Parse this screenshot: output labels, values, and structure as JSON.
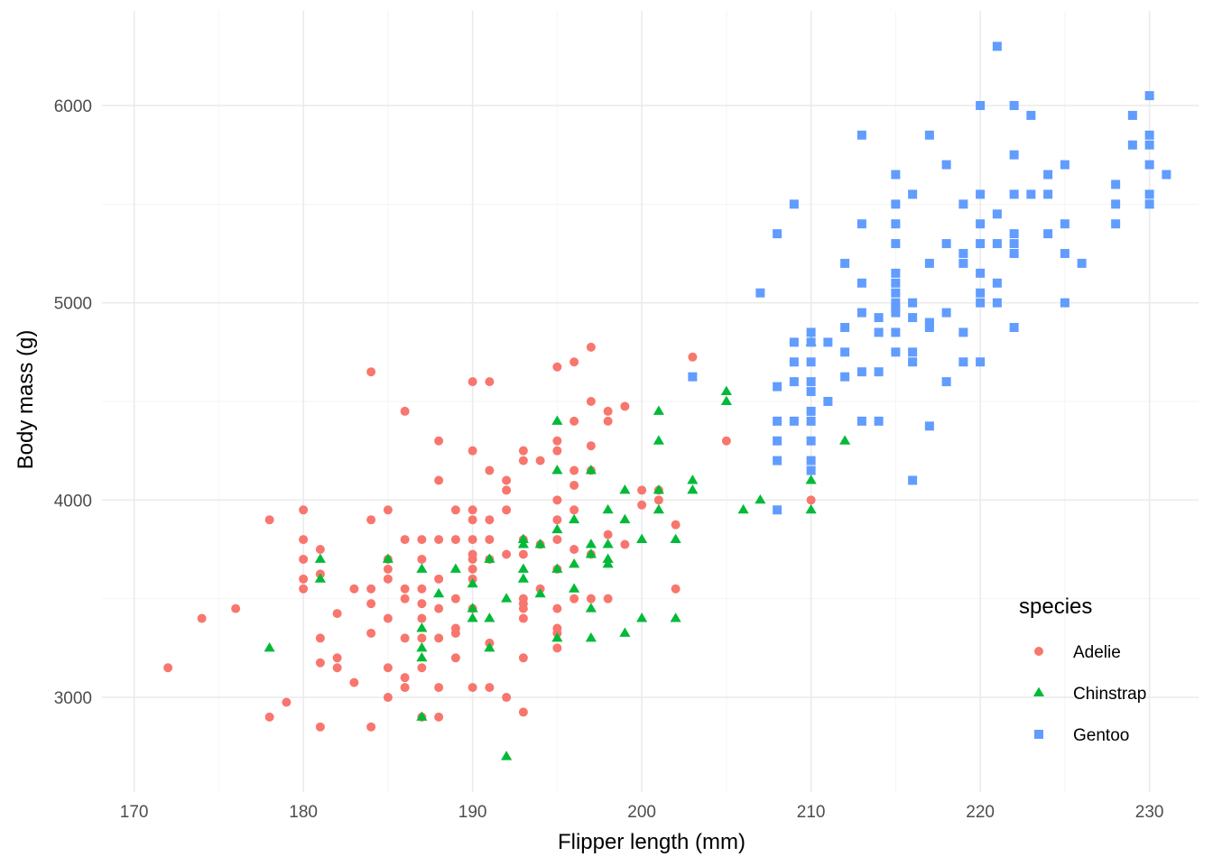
{
  "chart_data": {
    "type": "scatter",
    "xlabel": "Flipper length (mm)",
    "ylabel": "Body mass (g)",
    "xlim": [
      168.1,
      232.9
    ],
    "ylim": [
      2520,
      6480
    ],
    "x_ticks": [
      170,
      180,
      190,
      200,
      210,
      220,
      230
    ],
    "y_ticks": [
      3000,
      4000,
      5000,
      6000
    ],
    "grid": true,
    "legend": {
      "title": "species",
      "position": "right-bottom"
    },
    "series": [
      {
        "name": "Adelie",
        "color": "#F8766D",
        "shape": "circle",
        "points": [
          [
            172,
            3150
          ],
          [
            174,
            3400
          ],
          [
            176,
            3450
          ],
          [
            178,
            3900
          ],
          [
            178,
            2900
          ],
          [
            179,
            2975
          ],
          [
            180,
            3950
          ],
          [
            180,
            3800
          ],
          [
            180,
            3700
          ],
          [
            180,
            3600
          ],
          [
            180,
            3550
          ],
          [
            181,
            3750
          ],
          [
            181,
            3625
          ],
          [
            181,
            3300
          ],
          [
            181,
            3175
          ],
          [
            181,
            2850
          ],
          [
            182,
            3425
          ],
          [
            182,
            3200
          ],
          [
            182,
            3150
          ],
          [
            183,
            3550
          ],
          [
            183,
            3075
          ],
          [
            184,
            4650
          ],
          [
            184,
            3900
          ],
          [
            184,
            3550
          ],
          [
            184,
            3475
          ],
          [
            184,
            3325
          ],
          [
            184,
            2850
          ],
          [
            185,
            3950
          ],
          [
            185,
            3700
          ],
          [
            185,
            3650
          ],
          [
            185,
            3600
          ],
          [
            185,
            3400
          ],
          [
            185,
            3150
          ],
          [
            185,
            3000
          ],
          [
            186,
            4450
          ],
          [
            186,
            3800
          ],
          [
            186,
            3550
          ],
          [
            186,
            3500
          ],
          [
            186,
            3300
          ],
          [
            186,
            3100
          ],
          [
            186,
            3050
          ],
          [
            187,
            3800
          ],
          [
            187,
            3700
          ],
          [
            187,
            3550
          ],
          [
            187,
            3475
          ],
          [
            187,
            3400
          ],
          [
            187,
            3300
          ],
          [
            187,
            3150
          ],
          [
            187,
            2900
          ],
          [
            188,
            4300
          ],
          [
            188,
            4100
          ],
          [
            188,
            3800
          ],
          [
            188,
            3600
          ],
          [
            188,
            3450
          ],
          [
            188,
            3300
          ],
          [
            188,
            3050
          ],
          [
            188,
            2900
          ],
          [
            189,
            3950
          ],
          [
            189,
            3800
          ],
          [
            189,
            3500
          ],
          [
            189,
            3350
          ],
          [
            189,
            3325
          ],
          [
            189,
            3200
          ],
          [
            190,
            4600
          ],
          [
            190,
            4250
          ],
          [
            190,
            3950
          ],
          [
            190,
            3900
          ],
          [
            190,
            3800
          ],
          [
            190,
            3725
          ],
          [
            190,
            3700
          ],
          [
            190,
            3650
          ],
          [
            190,
            3600
          ],
          [
            190,
            3450
          ],
          [
            190,
            3050
          ],
          [
            191,
            4600
          ],
          [
            191,
            4150
          ],
          [
            191,
            3900
          ],
          [
            191,
            3800
          ],
          [
            191,
            3700
          ],
          [
            191,
            3275
          ],
          [
            191,
            3050
          ],
          [
            192,
            4100
          ],
          [
            192,
            4050
          ],
          [
            192,
            3950
          ],
          [
            192,
            3725
          ],
          [
            192,
            3000
          ],
          [
            193,
            4250
          ],
          [
            193,
            4200
          ],
          [
            193,
            3800
          ],
          [
            193,
            3725
          ],
          [
            193,
            3500
          ],
          [
            193,
            3475
          ],
          [
            193,
            3450
          ],
          [
            193,
            3400
          ],
          [
            193,
            3200
          ],
          [
            193,
            2925
          ],
          [
            194,
            4200
          ],
          [
            194,
            3775
          ],
          [
            194,
            3550
          ],
          [
            195,
            4675
          ],
          [
            195,
            4300
          ],
          [
            195,
            4250
          ],
          [
            195,
            4000
          ],
          [
            195,
            3900
          ],
          [
            195,
            3800
          ],
          [
            195,
            3650
          ],
          [
            195,
            3450
          ],
          [
            195,
            3350
          ],
          [
            195,
            3325
          ],
          [
            195,
            3250
          ],
          [
            196,
            4700
          ],
          [
            196,
            4400
          ],
          [
            196,
            4150
          ],
          [
            196,
            4075
          ],
          [
            196,
            3950
          ],
          [
            196,
            3750
          ],
          [
            196,
            3500
          ],
          [
            197,
            4775
          ],
          [
            197,
            4500
          ],
          [
            197,
            4275
          ],
          [
            197,
            4150
          ],
          [
            197,
            3725
          ],
          [
            197,
            3500
          ],
          [
            198,
            4450
          ],
          [
            198,
            4400
          ],
          [
            198,
            3825
          ],
          [
            198,
            3500
          ],
          [
            199,
            4475
          ],
          [
            199,
            3775
          ],
          [
            200,
            4050
          ],
          [
            200,
            3975
          ],
          [
            201,
            4050
          ],
          [
            201,
            4000
          ],
          [
            202,
            3875
          ],
          [
            202,
            3550
          ],
          [
            203,
            4725
          ],
          [
            205,
            4300
          ],
          [
            210,
            4000
          ]
        ]
      },
      {
        "name": "Chinstrap",
        "color": "#00BA38",
        "shape": "triangle",
        "points": [
          [
            178,
            3250
          ],
          [
            181,
            3700
          ],
          [
            181,
            3600
          ],
          [
            185,
            3700
          ],
          [
            187,
            3650
          ],
          [
            187,
            3350
          ],
          [
            187,
            3250
          ],
          [
            187,
            3200
          ],
          [
            187,
            2900
          ],
          [
            188,
            3525
          ],
          [
            189,
            3650
          ],
          [
            190,
            3575
          ],
          [
            190,
            3450
          ],
          [
            190,
            3400
          ],
          [
            191,
            3700
          ],
          [
            191,
            3400
          ],
          [
            191,
            3250
          ],
          [
            192,
            3500
          ],
          [
            192,
            2700
          ],
          [
            193,
            3800
          ],
          [
            193,
            3775
          ],
          [
            193,
            3650
          ],
          [
            193,
            3600
          ],
          [
            194,
            3775
          ],
          [
            194,
            3525
          ],
          [
            195,
            4400
          ],
          [
            195,
            4150
          ],
          [
            195,
            3850
          ],
          [
            195,
            3650
          ],
          [
            195,
            3300
          ],
          [
            196,
            3900
          ],
          [
            196,
            3675
          ],
          [
            196,
            3550
          ],
          [
            197,
            4150
          ],
          [
            197,
            3775
          ],
          [
            197,
            3725
          ],
          [
            197,
            3450
          ],
          [
            197,
            3300
          ],
          [
            198,
            3775
          ],
          [
            198,
            3700
          ],
          [
            198,
            3675
          ],
          [
            198,
            3950
          ],
          [
            199,
            3900
          ],
          [
            199,
            4050
          ],
          [
            199,
            3325
          ],
          [
            200,
            3800
          ],
          [
            200,
            3400
          ],
          [
            201,
            4450
          ],
          [
            201,
            4300
          ],
          [
            201,
            4050
          ],
          [
            201,
            3950
          ],
          [
            202,
            3800
          ],
          [
            202,
            3400
          ],
          [
            203,
            4100
          ],
          [
            203,
            4050
          ],
          [
            205,
            4550
          ],
          [
            205,
            4500
          ],
          [
            206,
            3950
          ],
          [
            207,
            4000
          ],
          [
            210,
            4800
          ],
          [
            210,
            4100
          ],
          [
            210,
            3950
          ],
          [
            212,
            4300
          ]
        ]
      },
      {
        "name": "Gentoo",
        "color": "#619CFF",
        "shape": "square",
        "points": [
          [
            203,
            4625
          ],
          [
            207,
            5050
          ],
          [
            208,
            5350
          ],
          [
            208,
            4575
          ],
          [
            208,
            4400
          ],
          [
            208,
            4300
          ],
          [
            208,
            4200
          ],
          [
            208,
            3950
          ],
          [
            209,
            5500
          ],
          [
            209,
            4800
          ],
          [
            209,
            4700
          ],
          [
            209,
            4600
          ],
          [
            209,
            4400
          ],
          [
            210,
            4850
          ],
          [
            210,
            4800
          ],
          [
            210,
            4700
          ],
          [
            210,
            4600
          ],
          [
            210,
            4550
          ],
          [
            210,
            4450
          ],
          [
            210,
            4400
          ],
          [
            210,
            4300
          ],
          [
            210,
            4200
          ],
          [
            210,
            4150
          ],
          [
            211,
            4800
          ],
          [
            211,
            4500
          ],
          [
            212,
            5200
          ],
          [
            212,
            4875
          ],
          [
            212,
            4750
          ],
          [
            212,
            4625
          ],
          [
            213,
            5850
          ],
          [
            213,
            5400
          ],
          [
            213,
            5100
          ],
          [
            213,
            4950
          ],
          [
            213,
            4650
          ],
          [
            213,
            4400
          ],
          [
            214,
            4925
          ],
          [
            214,
            4850
          ],
          [
            214,
            4650
          ],
          [
            214,
            4400
          ],
          [
            215,
            5650
          ],
          [
            215,
            5500
          ],
          [
            215,
            5400
          ],
          [
            215,
            5300
          ],
          [
            215,
            5150
          ],
          [
            215,
            5100
          ],
          [
            215,
            5050
          ],
          [
            215,
            5000
          ],
          [
            215,
            4975
          ],
          [
            215,
            4950
          ],
          [
            215,
            4850
          ],
          [
            215,
            4750
          ],
          [
            216,
            5550
          ],
          [
            216,
            5000
          ],
          [
            216,
            4925
          ],
          [
            216,
            4750
          ],
          [
            216,
            4700
          ],
          [
            216,
            4100
          ],
          [
            217,
            5850
          ],
          [
            217,
            5200
          ],
          [
            217,
            4900
          ],
          [
            217,
            4875
          ],
          [
            217,
            4375
          ],
          [
            218,
            5700
          ],
          [
            218,
            5300
          ],
          [
            218,
            4950
          ],
          [
            218,
            4600
          ],
          [
            219,
            5500
          ],
          [
            219,
            5250
          ],
          [
            219,
            5200
          ],
          [
            219,
            4850
          ],
          [
            219,
            4700
          ],
          [
            220,
            6000
          ],
          [
            220,
            5550
          ],
          [
            220,
            5400
          ],
          [
            220,
            5300
          ],
          [
            220,
            5150
          ],
          [
            220,
            5050
          ],
          [
            220,
            5000
          ],
          [
            220,
            4700
          ],
          [
            221,
            6300
          ],
          [
            221,
            5450
          ],
          [
            221,
            5300
          ],
          [
            221,
            5100
          ],
          [
            221,
            5000
          ],
          [
            222,
            6000
          ],
          [
            222,
            5750
          ],
          [
            222,
            5550
          ],
          [
            222,
            5350
          ],
          [
            222,
            5300
          ],
          [
            222,
            5250
          ],
          [
            222,
            4875
          ],
          [
            223,
            5950
          ],
          [
            223,
            5550
          ],
          [
            224,
            5650
          ],
          [
            224,
            5550
          ],
          [
            224,
            5350
          ],
          [
            225,
            5700
          ],
          [
            225,
            5400
          ],
          [
            225,
            5250
          ],
          [
            225,
            5000
          ],
          [
            226,
            5200
          ],
          [
            228,
            5600
          ],
          [
            228,
            5500
          ],
          [
            228,
            5400
          ],
          [
            229,
            5950
          ],
          [
            229,
            5800
          ],
          [
            230,
            6050
          ],
          [
            230,
            5850
          ],
          [
            230,
            5800
          ],
          [
            230,
            5700
          ],
          [
            230,
            5550
          ],
          [
            230,
            5500
          ],
          [
            231,
            5650
          ]
        ]
      }
    ]
  }
}
